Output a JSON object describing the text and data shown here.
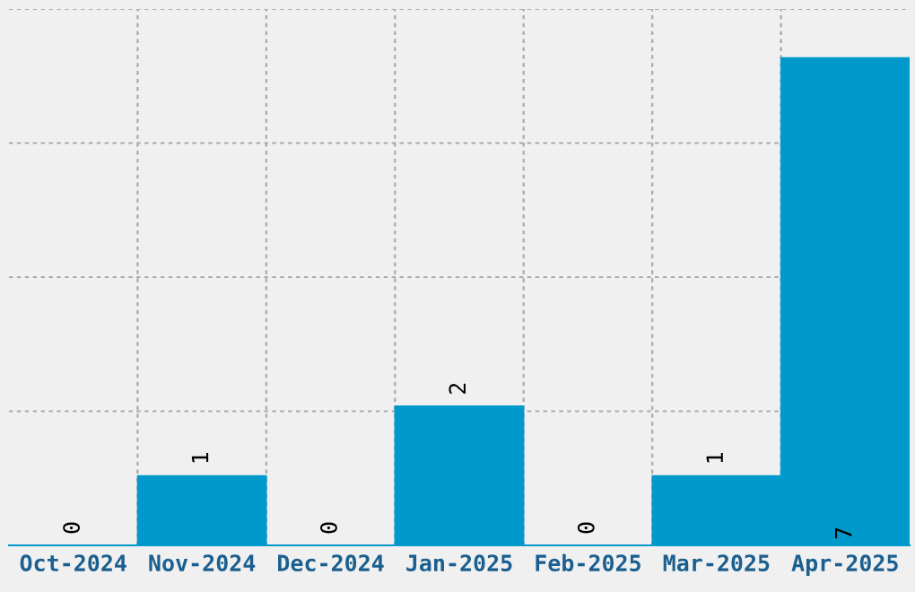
{
  "chart_data": {
    "type": "bar",
    "categories": [
      "Oct-2024",
      "Nov-2024",
      "Dec-2024",
      "Jan-2025",
      "Feb-2025",
      "Mar-2025",
      "Apr-2025"
    ],
    "values": [
      0,
      1,
      0,
      2,
      0,
      1,
      7
    ],
    "color": "#0099cc",
    "ylim": [
      0,
      7.7
    ],
    "yticks": [
      {
        "value": 0,
        "label": null
      },
      {
        "value": 1.925,
        "label": null
      },
      {
        "value": 3.85,
        "label": null
      },
      {
        "value": 5.775,
        "label": null
      },
      {
        "value": 7.7,
        "label": null
      }
    ],
    "tick_labels": "x",
    "grid": true,
    "data_labels": true
  }
}
